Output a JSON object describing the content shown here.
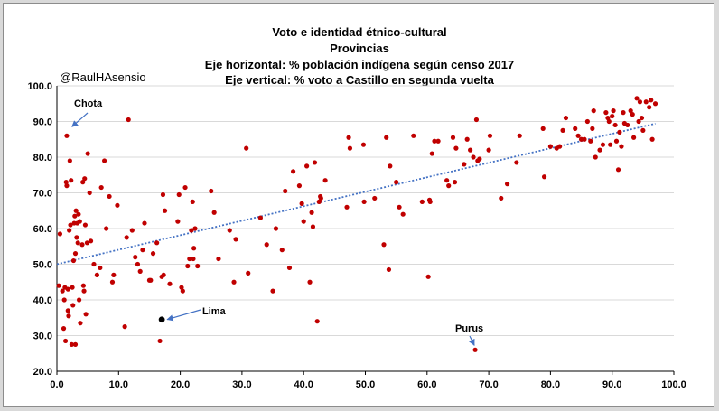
{
  "handle": "@RaulHAsensio",
  "chart_data": {
    "type": "scatter",
    "title_lines": [
      "Voto e identidad étnico-cultural",
      "Provincias",
      "Eje horizontal: % población indígena según censo 2017",
      "Eje vertical: % voto a Castillo en segunda vuelta"
    ],
    "xlabel": "",
    "ylabel": "",
    "xlim": [
      0,
      100
    ],
    "ylim": [
      20,
      100
    ],
    "xticks": [
      "0.0",
      "10.0",
      "20.0",
      "30.0",
      "40.0",
      "50.0",
      "60.0",
      "70.0",
      "80.0",
      "90.0",
      "100.0"
    ],
    "yticks": [
      "20.0",
      "30.0",
      "40.0",
      "50.0",
      "60.0",
      "70.0",
      "80.0",
      "90.0",
      "100.0"
    ],
    "grid": true,
    "colors": {
      "points": "#c00000",
      "highlight": "#000000",
      "trend": "#4472c4",
      "arrow": "#4472c4",
      "grid": "#d9d9d9"
    },
    "trendline": {
      "x": [
        0,
        97
      ],
      "y": [
        50.0,
        89.4
      ]
    },
    "annotations": [
      {
        "label": "Chota",
        "x": 2.0,
        "y": 86.0
      },
      {
        "label": "Lima",
        "x": 17.0,
        "y": 34.5
      },
      {
        "label": "Purus",
        "x": 67.8,
        "y": 26.0
      }
    ],
    "highlight": [
      {
        "x": 17.0,
        "y": 34.5
      }
    ],
    "points": [
      [
        0.3,
        44
      ],
      [
        0.5,
        58.5
      ],
      [
        0.9,
        42.5
      ],
      [
        1.1,
        32
      ],
      [
        1.2,
        40
      ],
      [
        1.3,
        43.5
      ],
      [
        1.4,
        28.5
      ],
      [
        1.5,
        73
      ],
      [
        1.6,
        72
      ],
      [
        1.6,
        86
      ],
      [
        1.8,
        43
      ],
      [
        1.8,
        37
      ],
      [
        1.9,
        35.5
      ],
      [
        2.0,
        59.5
      ],
      [
        2.1,
        79
      ],
      [
        2.2,
        61
      ],
      [
        2.3,
        73.5
      ],
      [
        2.4,
        27.5
      ],
      [
        2.5,
        43.5
      ],
      [
        2.6,
        38.5
      ],
      [
        2.7,
        51
      ],
      [
        2.8,
        61.5
      ],
      [
        2.9,
        63.5
      ],
      [
        3.0,
        53
      ],
      [
        3.0,
        27.5
      ],
      [
        3.1,
        65
      ],
      [
        3.2,
        57.5
      ],
      [
        3.3,
        61.5
      ],
      [
        3.4,
        56
      ],
      [
        3.5,
        64
      ],
      [
        3.6,
        40
      ],
      [
        3.7,
        62
      ],
      [
        3.8,
        33.5
      ],
      [
        4.1,
        55.5
      ],
      [
        4.2,
        73
      ],
      [
        4.3,
        44
      ],
      [
        4.4,
        42.5
      ],
      [
        4.5,
        74
      ],
      [
        4.6,
        61
      ],
      [
        4.7,
        36
      ],
      [
        4.9,
        56
      ],
      [
        5.0,
        81
      ],
      [
        5.3,
        70
      ],
      [
        5.5,
        56.5
      ],
      [
        6.0,
        50
      ],
      [
        6.5,
        47
      ],
      [
        7.0,
        49
      ],
      [
        7.2,
        71.5
      ],
      [
        7.7,
        79
      ],
      [
        8.0,
        60
      ],
      [
        8.5,
        69
      ],
      [
        9.0,
        45
      ],
      [
        9.2,
        47
      ],
      [
        9.8,
        66.5
      ],
      [
        11.0,
        32.5
      ],
      [
        11.3,
        57.5
      ],
      [
        11.6,
        90.5
      ],
      [
        12.2,
        59.5
      ],
      [
        12.7,
        52
      ],
      [
        13.1,
        50
      ],
      [
        13.5,
        48
      ],
      [
        13.9,
        54
      ],
      [
        14.2,
        61.5
      ],
      [
        15.0,
        45.5
      ],
      [
        15.2,
        45.5
      ],
      [
        15.6,
        53
      ],
      [
        16.2,
        56
      ],
      [
        16.7,
        28.5
      ],
      [
        17.0,
        46.5
      ],
      [
        17.2,
        69.5
      ],
      [
        17.3,
        47
      ],
      [
        17.5,
        65
      ],
      [
        18.3,
        44.5
      ],
      [
        19.6,
        62
      ],
      [
        19.8,
        69.5
      ],
      [
        20.2,
        43.5
      ],
      [
        20.4,
        42.5
      ],
      [
        20.8,
        71.5
      ],
      [
        21.2,
        49.5
      ],
      [
        21.5,
        51.5
      ],
      [
        21.8,
        59.5
      ],
      [
        22.0,
        67.5
      ],
      [
        22.1,
        51.5
      ],
      [
        22.2,
        54.5
      ],
      [
        22.4,
        60
      ],
      [
        22.8,
        49.5
      ],
      [
        25.0,
        70.5
      ],
      [
        25.5,
        64.5
      ],
      [
        26.2,
        51.5
      ],
      [
        28.0,
        59.5
      ],
      [
        28.7,
        45
      ],
      [
        29.0,
        57
      ],
      [
        30.7,
        82.5
      ],
      [
        31.0,
        47.5
      ],
      [
        33.0,
        63
      ],
      [
        34.0,
        55.5
      ],
      [
        35.0,
        42.5
      ],
      [
        35.5,
        60
      ],
      [
        36.5,
        54
      ],
      [
        37.0,
        70.5
      ],
      [
        37.7,
        49
      ],
      [
        38.3,
        76
      ],
      [
        39.3,
        72
      ],
      [
        39.7,
        67
      ],
      [
        40.0,
        62
      ],
      [
        40.5,
        77.5
      ],
      [
        41.0,
        45
      ],
      [
        41.3,
        64.5
      ],
      [
        41.5,
        60.5
      ],
      [
        41.8,
        78.5
      ],
      [
        42.2,
        34
      ],
      [
        42.5,
        67.5
      ],
      [
        42.7,
        69
      ],
      [
        42.8,
        68.5
      ],
      [
        43.5,
        73.5
      ],
      [
        47.0,
        66
      ],
      [
        47.3,
        85.5
      ],
      [
        47.5,
        82.5
      ],
      [
        49.7,
        83.5
      ],
      [
        49.8,
        67.5
      ],
      [
        51.5,
        68.5
      ],
      [
        53.0,
        55.5
      ],
      [
        53.4,
        85.5
      ],
      [
        53.8,
        48.5
      ],
      [
        54.0,
        77.5
      ],
      [
        55.0,
        73
      ],
      [
        55.5,
        66
      ],
      [
        56.1,
        64
      ],
      [
        57.8,
        86
      ],
      [
        59.2,
        67.5
      ],
      [
        60.2,
        46.5
      ],
      [
        60.4,
        68
      ],
      [
        60.5,
        67.5
      ],
      [
        60.8,
        81
      ],
      [
        61.2,
        84.5
      ],
      [
        61.8,
        84.5
      ],
      [
        63.2,
        73.5
      ],
      [
        63.5,
        72
      ],
      [
        64.2,
        85.5
      ],
      [
        64.5,
        73
      ],
      [
        64.7,
        82.5
      ],
      [
        66.0,
        78
      ],
      [
        66.5,
        85
      ],
      [
        67.0,
        82
      ],
      [
        67.5,
        80
      ],
      [
        68.0,
        90.5
      ],
      [
        68.2,
        79
      ],
      [
        68.5,
        79.5
      ],
      [
        70.0,
        82
      ],
      [
        70.2,
        86
      ],
      [
        72.0,
        68.5
      ],
      [
        73.0,
        72.5
      ],
      [
        74.5,
        78.5
      ],
      [
        75.0,
        86
      ],
      [
        78.8,
        88
      ],
      [
        79.0,
        74.5
      ],
      [
        80.0,
        83
      ],
      [
        81.0,
        82.5
      ],
      [
        81.5,
        83
      ],
      [
        82.0,
        87.5
      ],
      [
        82.5,
        91
      ],
      [
        84.0,
        88
      ],
      [
        84.5,
        86
      ],
      [
        85.0,
        85
      ],
      [
        85.5,
        85
      ],
      [
        86.0,
        90
      ],
      [
        86.5,
        84.5
      ],
      [
        86.8,
        88
      ],
      [
        87.0,
        93
      ],
      [
        87.3,
        80
      ],
      [
        88.0,
        82
      ],
      [
        88.5,
        83.5
      ],
      [
        89.0,
        92.5
      ],
      [
        89.3,
        91
      ],
      [
        89.5,
        90
      ],
      [
        89.7,
        83.5
      ],
      [
        90.0,
        91.5
      ],
      [
        90.2,
        93
      ],
      [
        90.5,
        89
      ],
      [
        90.7,
        84.5
      ],
      [
        91.0,
        76.5
      ],
      [
        91.2,
        87
      ],
      [
        91.5,
        83
      ],
      [
        91.8,
        92.5
      ],
      [
        92.0,
        89.5
      ],
      [
        92.5,
        89
      ],
      [
        93.0,
        93
      ],
      [
        93.3,
        92
      ],
      [
        93.5,
        85.5
      ],
      [
        94.0,
        96.5
      ],
      [
        94.3,
        90
      ],
      [
        94.5,
        95.5
      ],
      [
        94.8,
        91
      ],
      [
        95.0,
        87.5
      ],
      [
        95.5,
        95.5
      ],
      [
        96.0,
        94
      ],
      [
        96.3,
        96
      ],
      [
        96.5,
        85
      ],
      [
        97.0,
        95
      ],
      [
        67.8,
        26
      ]
    ]
  }
}
